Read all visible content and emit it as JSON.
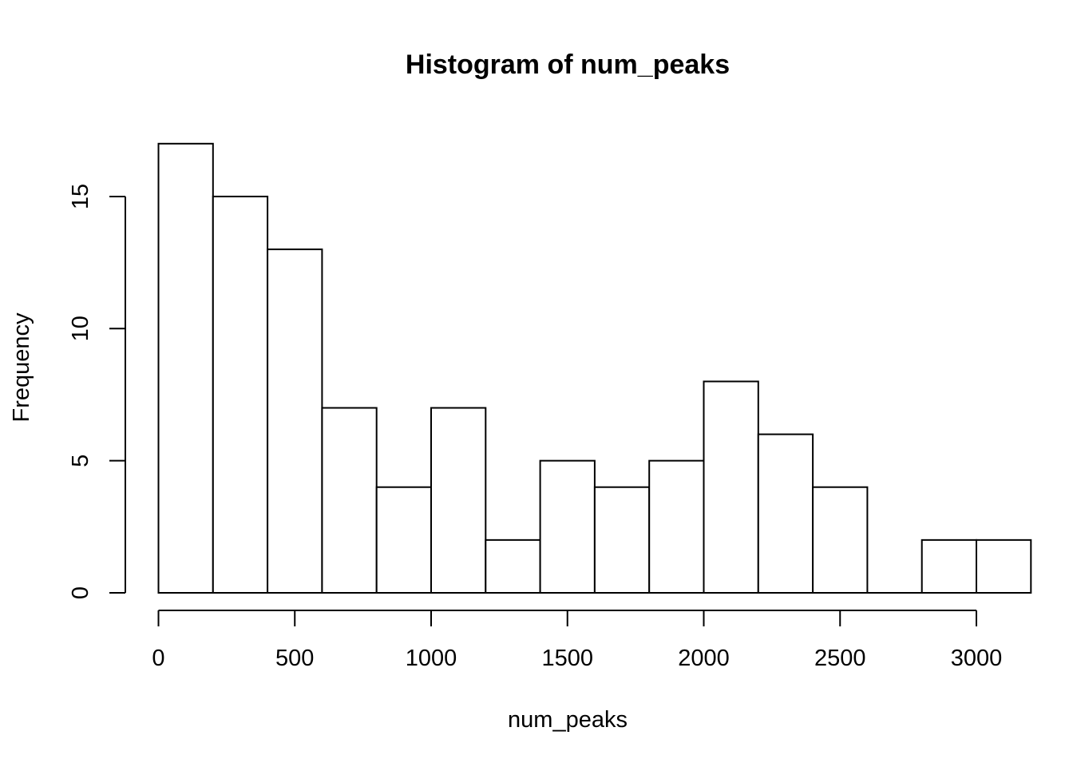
{
  "chart_data": {
    "type": "bar",
    "title": "Histogram of num_peaks",
    "xlabel": "num_peaks",
    "ylabel": "Frequency",
    "bin_edges": [
      0,
      200,
      400,
      600,
      800,
      1000,
      1200,
      1400,
      1600,
      1800,
      2000,
      2200,
      2400,
      2600,
      2800,
      3000,
      3200
    ],
    "values": [
      17,
      15,
      13,
      7,
      4,
      7,
      2,
      5,
      4,
      5,
      8,
      6,
      4,
      0,
      2,
      2
    ],
    "xlim": [
      0,
      3200
    ],
    "ylim": [
      0,
      17
    ],
    "x_ticks": [
      0,
      500,
      1000,
      1500,
      2000,
      2500,
      3000
    ],
    "x_tick_labels": [
      "0",
      "500",
      "1000",
      "1500",
      "2000",
      "2500",
      "3000"
    ],
    "y_ticks": [
      0,
      5,
      10,
      15
    ],
    "y_tick_labels": [
      "0",
      "5",
      "10",
      "15"
    ],
    "grid": false,
    "colors": {
      "bar_fill": "#ffffff",
      "bar_stroke": "#000000"
    }
  }
}
